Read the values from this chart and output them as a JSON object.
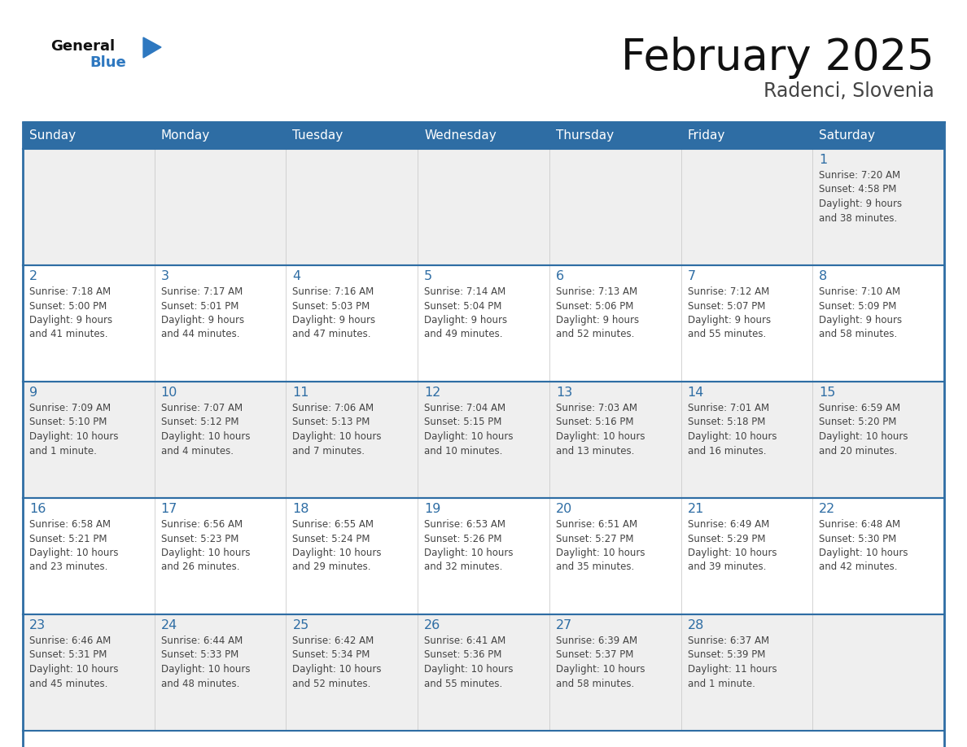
{
  "title": "February 2025",
  "subtitle": "Radenci, Slovenia",
  "days_of_week": [
    "Sunday",
    "Monday",
    "Tuesday",
    "Wednesday",
    "Thursday",
    "Friday",
    "Saturday"
  ],
  "header_bg_color": "#2E6DA4",
  "header_text_color": "#FFFFFF",
  "cell_bg_light": "#EFEFEF",
  "cell_bg_white": "#FFFFFF",
  "border_color": "#2E6DA4",
  "day_number_color": "#2E6DA4",
  "text_color": "#444444",
  "title_color": "#111111",
  "subtitle_color": "#444444",
  "logo_general_color": "#111111",
  "logo_blue_color": "#2E78C0",
  "calendar_data": [
    {
      "day": 1,
      "col": 6,
      "row": 0,
      "sunrise": "7:20 AM",
      "sunset": "4:58 PM",
      "daylight_line1": "Daylight: 9 hours",
      "daylight_line2": "and 38 minutes."
    },
    {
      "day": 2,
      "col": 0,
      "row": 1,
      "sunrise": "7:18 AM",
      "sunset": "5:00 PM",
      "daylight_line1": "Daylight: 9 hours",
      "daylight_line2": "and 41 minutes."
    },
    {
      "day": 3,
      "col": 1,
      "row": 1,
      "sunrise": "7:17 AM",
      "sunset": "5:01 PM",
      "daylight_line1": "Daylight: 9 hours",
      "daylight_line2": "and 44 minutes."
    },
    {
      "day": 4,
      "col": 2,
      "row": 1,
      "sunrise": "7:16 AM",
      "sunset": "5:03 PM",
      "daylight_line1": "Daylight: 9 hours",
      "daylight_line2": "and 47 minutes."
    },
    {
      "day": 5,
      "col": 3,
      "row": 1,
      "sunrise": "7:14 AM",
      "sunset": "5:04 PM",
      "daylight_line1": "Daylight: 9 hours",
      "daylight_line2": "and 49 minutes."
    },
    {
      "day": 6,
      "col": 4,
      "row": 1,
      "sunrise": "7:13 AM",
      "sunset": "5:06 PM",
      "daylight_line1": "Daylight: 9 hours",
      "daylight_line2": "and 52 minutes."
    },
    {
      "day": 7,
      "col": 5,
      "row": 1,
      "sunrise": "7:12 AM",
      "sunset": "5:07 PM",
      "daylight_line1": "Daylight: 9 hours",
      "daylight_line2": "and 55 minutes."
    },
    {
      "day": 8,
      "col": 6,
      "row": 1,
      "sunrise": "7:10 AM",
      "sunset": "5:09 PM",
      "daylight_line1": "Daylight: 9 hours",
      "daylight_line2": "and 58 minutes."
    },
    {
      "day": 9,
      "col": 0,
      "row": 2,
      "sunrise": "7:09 AM",
      "sunset": "5:10 PM",
      "daylight_line1": "Daylight: 10 hours",
      "daylight_line2": "and 1 minute."
    },
    {
      "day": 10,
      "col": 1,
      "row": 2,
      "sunrise": "7:07 AM",
      "sunset": "5:12 PM",
      "daylight_line1": "Daylight: 10 hours",
      "daylight_line2": "and 4 minutes."
    },
    {
      "day": 11,
      "col": 2,
      "row": 2,
      "sunrise": "7:06 AM",
      "sunset": "5:13 PM",
      "daylight_line1": "Daylight: 10 hours",
      "daylight_line2": "and 7 minutes."
    },
    {
      "day": 12,
      "col": 3,
      "row": 2,
      "sunrise": "7:04 AM",
      "sunset": "5:15 PM",
      "daylight_line1": "Daylight: 10 hours",
      "daylight_line2": "and 10 minutes."
    },
    {
      "day": 13,
      "col": 4,
      "row": 2,
      "sunrise": "7:03 AM",
      "sunset": "5:16 PM",
      "daylight_line1": "Daylight: 10 hours",
      "daylight_line2": "and 13 minutes."
    },
    {
      "day": 14,
      "col": 5,
      "row": 2,
      "sunrise": "7:01 AM",
      "sunset": "5:18 PM",
      "daylight_line1": "Daylight: 10 hours",
      "daylight_line2": "and 16 minutes."
    },
    {
      "day": 15,
      "col": 6,
      "row": 2,
      "sunrise": "6:59 AM",
      "sunset": "5:20 PM",
      "daylight_line1": "Daylight: 10 hours",
      "daylight_line2": "and 20 minutes."
    },
    {
      "day": 16,
      "col": 0,
      "row": 3,
      "sunrise": "6:58 AM",
      "sunset": "5:21 PM",
      "daylight_line1": "Daylight: 10 hours",
      "daylight_line2": "and 23 minutes."
    },
    {
      "day": 17,
      "col": 1,
      "row": 3,
      "sunrise": "6:56 AM",
      "sunset": "5:23 PM",
      "daylight_line1": "Daylight: 10 hours",
      "daylight_line2": "and 26 minutes."
    },
    {
      "day": 18,
      "col": 2,
      "row": 3,
      "sunrise": "6:55 AM",
      "sunset": "5:24 PM",
      "daylight_line1": "Daylight: 10 hours",
      "daylight_line2": "and 29 minutes."
    },
    {
      "day": 19,
      "col": 3,
      "row": 3,
      "sunrise": "6:53 AM",
      "sunset": "5:26 PM",
      "daylight_line1": "Daylight: 10 hours",
      "daylight_line2": "and 32 minutes."
    },
    {
      "day": 20,
      "col": 4,
      "row": 3,
      "sunrise": "6:51 AM",
      "sunset": "5:27 PM",
      "daylight_line1": "Daylight: 10 hours",
      "daylight_line2": "and 35 minutes."
    },
    {
      "day": 21,
      "col": 5,
      "row": 3,
      "sunrise": "6:49 AM",
      "sunset": "5:29 PM",
      "daylight_line1": "Daylight: 10 hours",
      "daylight_line2": "and 39 minutes."
    },
    {
      "day": 22,
      "col": 6,
      "row": 3,
      "sunrise": "6:48 AM",
      "sunset": "5:30 PM",
      "daylight_line1": "Daylight: 10 hours",
      "daylight_line2": "and 42 minutes."
    },
    {
      "day": 23,
      "col": 0,
      "row": 4,
      "sunrise": "6:46 AM",
      "sunset": "5:31 PM",
      "daylight_line1": "Daylight: 10 hours",
      "daylight_line2": "and 45 minutes."
    },
    {
      "day": 24,
      "col": 1,
      "row": 4,
      "sunrise": "6:44 AM",
      "sunset": "5:33 PM",
      "daylight_line1": "Daylight: 10 hours",
      "daylight_line2": "and 48 minutes."
    },
    {
      "day": 25,
      "col": 2,
      "row": 4,
      "sunrise": "6:42 AM",
      "sunset": "5:34 PM",
      "daylight_line1": "Daylight: 10 hours",
      "daylight_line2": "and 52 minutes."
    },
    {
      "day": 26,
      "col": 3,
      "row": 4,
      "sunrise": "6:41 AM",
      "sunset": "5:36 PM",
      "daylight_line1": "Daylight: 10 hours",
      "daylight_line2": "and 55 minutes."
    },
    {
      "day": 27,
      "col": 4,
      "row": 4,
      "sunrise": "6:39 AM",
      "sunset": "5:37 PM",
      "daylight_line1": "Daylight: 10 hours",
      "daylight_line2": "and 58 minutes."
    },
    {
      "day": 28,
      "col": 5,
      "row": 4,
      "sunrise": "6:37 AM",
      "sunset": "5:39 PM",
      "daylight_line1": "Daylight: 11 hours",
      "daylight_line2": "and 1 minute."
    }
  ]
}
